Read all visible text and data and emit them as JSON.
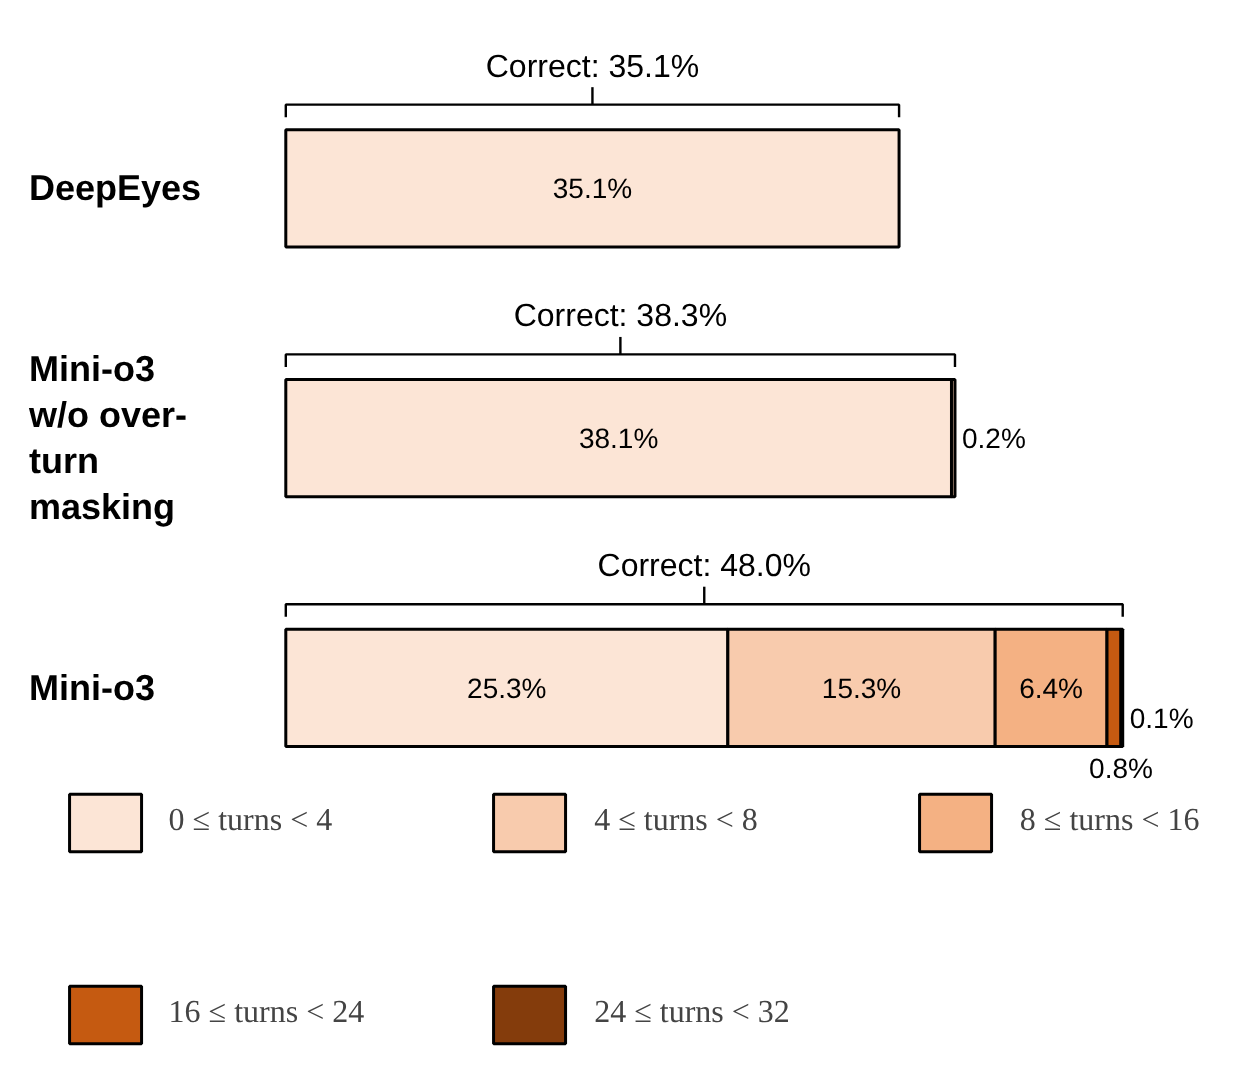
{
  "chart_data": {
    "type": "bar",
    "orientation": "horizontal",
    "stacked": true,
    "categories": [
      "DeepEyes",
      "Mini-o3 w/o over-turn masking",
      "Mini-o3"
    ],
    "series": [
      {
        "name": "0 ≤ turns < 4",
        "color": "#fce5d6",
        "values": [
          35.1,
          38.1,
          25.3
        ],
        "value_labels": [
          "35.1%",
          "38.1%",
          "25.3%"
        ]
      },
      {
        "name": "4 ≤ turns < 8",
        "color": "#f8cbad",
        "values": [
          null,
          0.2,
          15.3
        ],
        "value_labels": [
          null,
          "0.2%",
          "15.3%"
        ]
      },
      {
        "name": "8 ≤ turns < 16",
        "color": "#f4b183",
        "values": [
          null,
          null,
          6.4
        ],
        "value_labels": [
          null,
          null,
          "6.4%"
        ]
      },
      {
        "name": "16 ≤ turns < 24",
        "color": "#c55a11",
        "values": [
          null,
          null,
          0.8
        ],
        "value_labels": [
          null,
          null,
          "0.8%"
        ]
      },
      {
        "name": "24 ≤ turns < 32",
        "color": "#843c0c",
        "values": [
          null,
          null,
          0.1
        ],
        "value_labels": [
          null,
          null,
          "0.1%"
        ]
      }
    ],
    "annotations": [
      "Correct: 35.1%",
      "Correct: 38.3%",
      "Correct: 48.0%"
    ],
    "legend": "bottom"
  }
}
